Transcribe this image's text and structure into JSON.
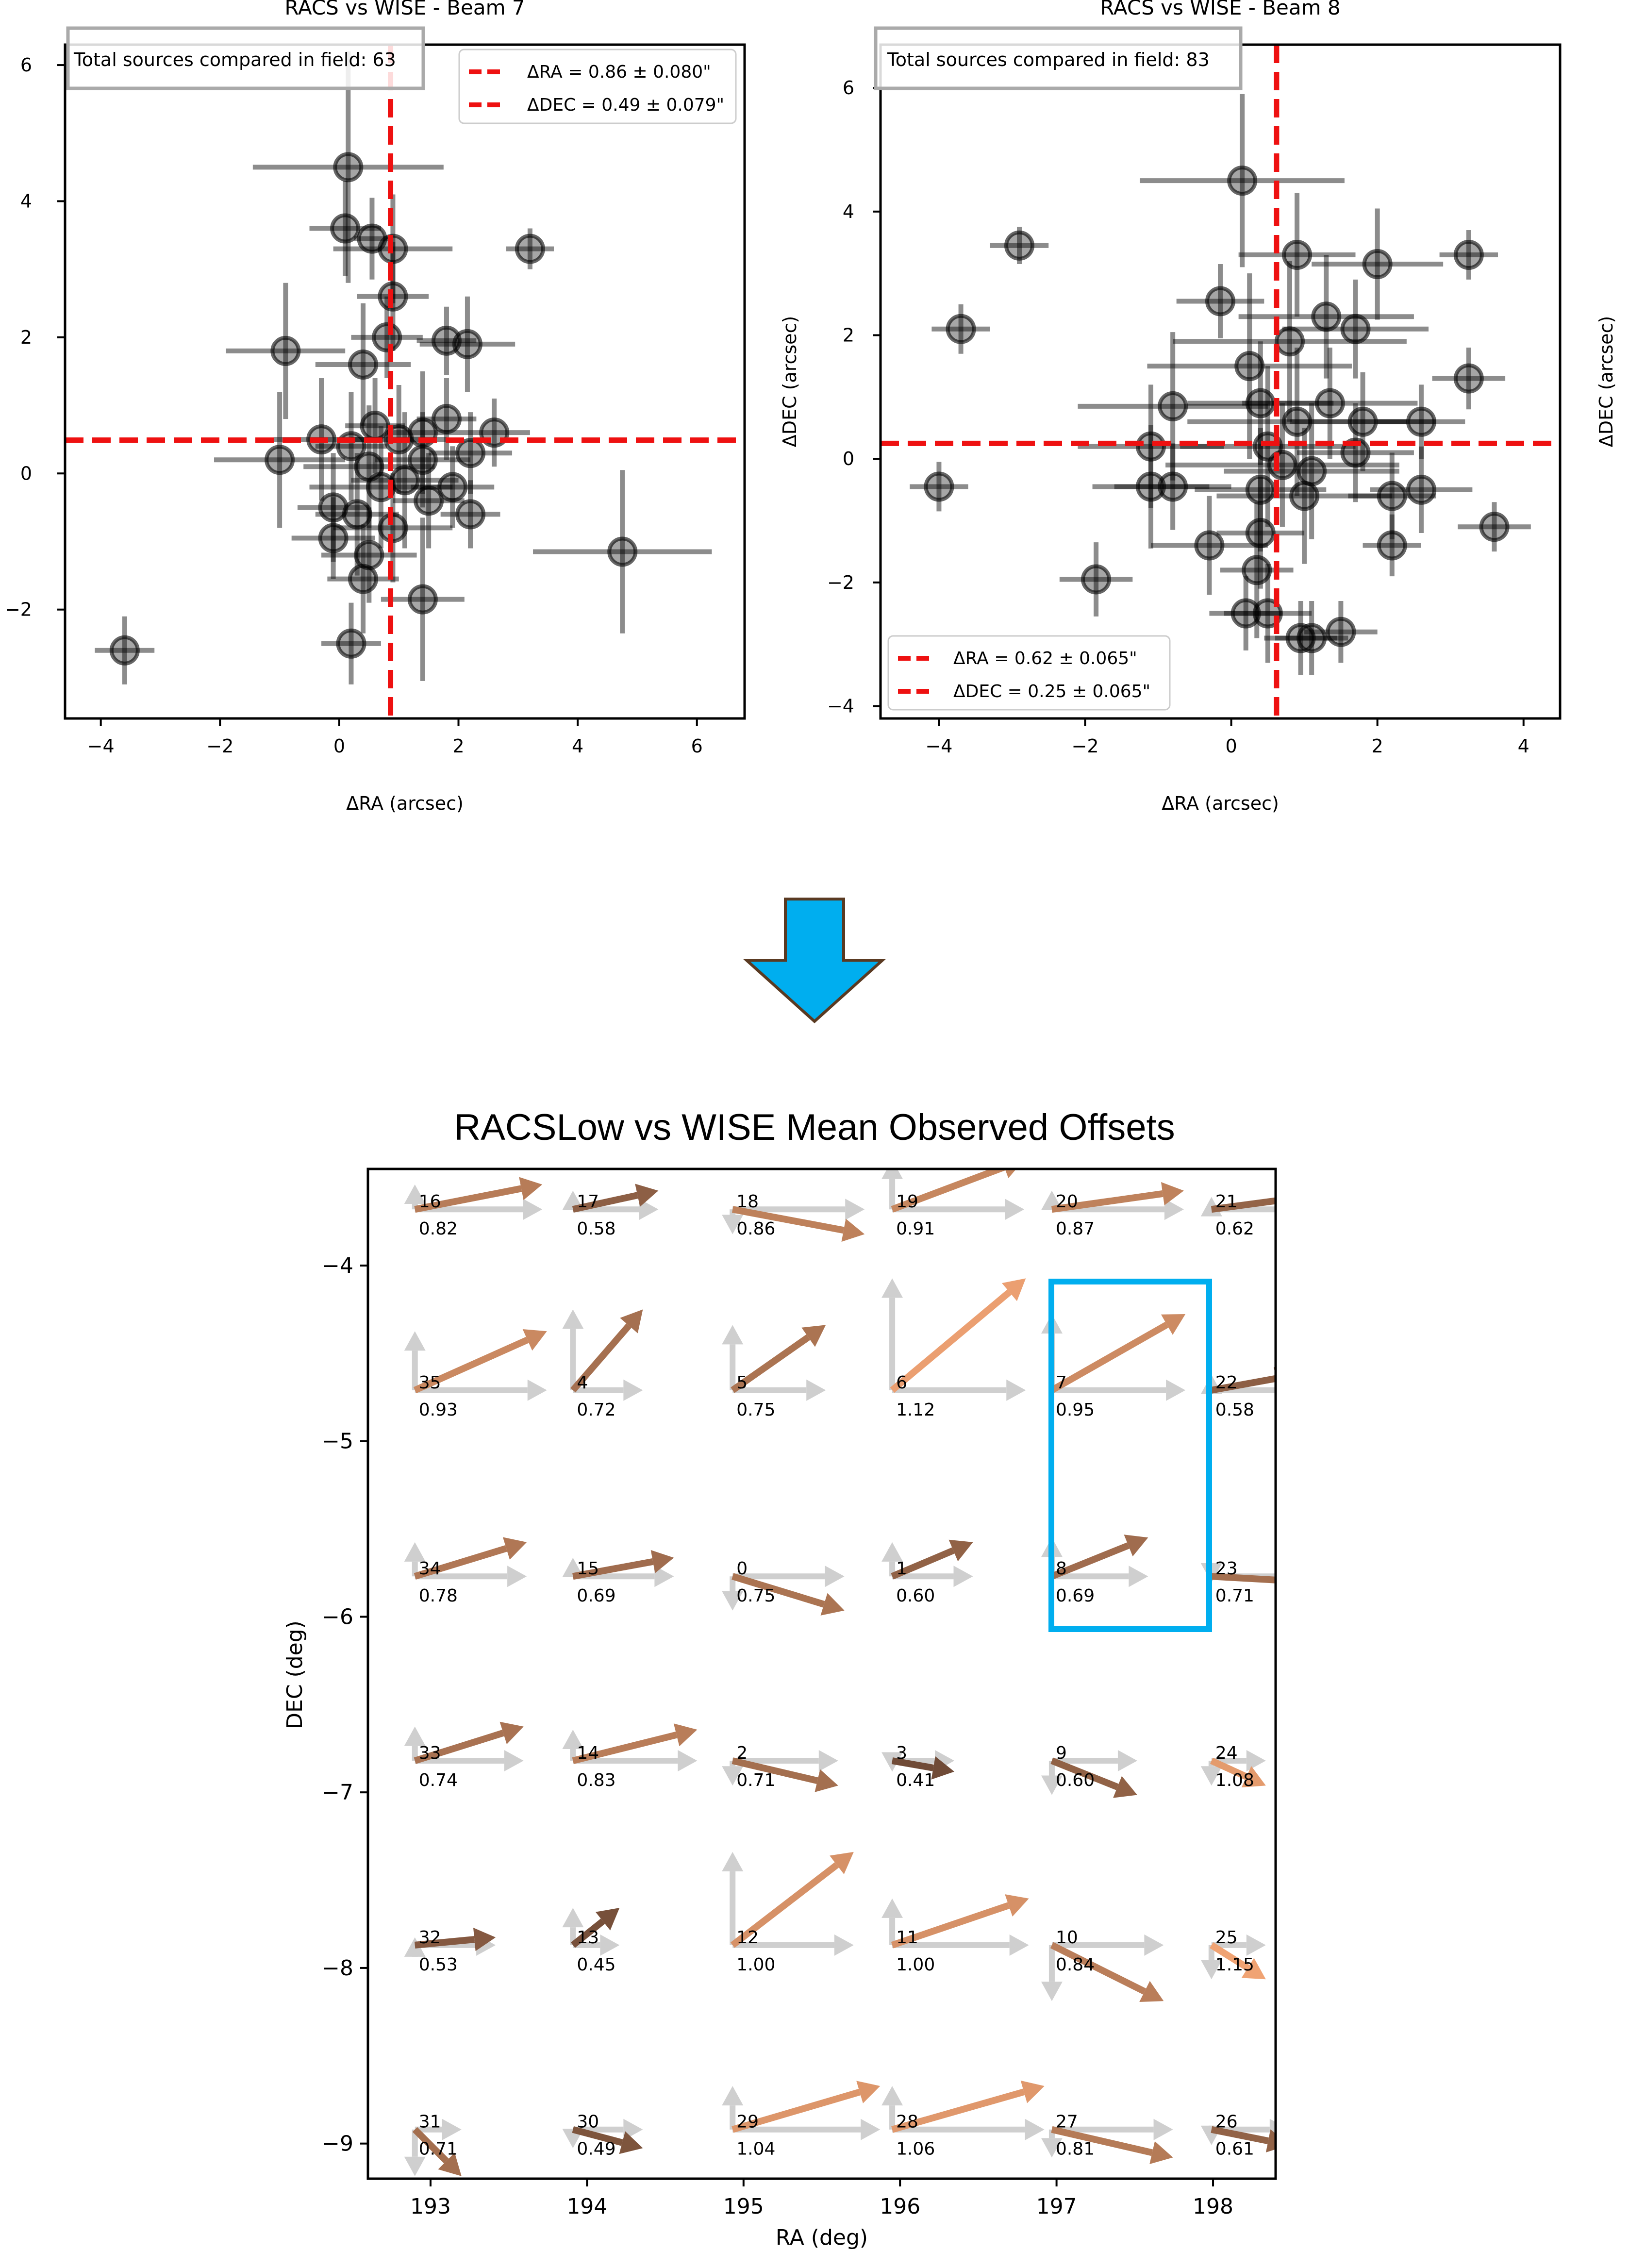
{
  "colors": {
    "point": "#000000",
    "mean_line": "#ee1111",
    "arrow_down": "#00aeef",
    "highlight": "#00aeef",
    "ref_arrow": "#cfcfcf",
    "offset_arrow_dark": "#6e4a36",
    "offset_arrow_light": "#f0a373"
  },
  "chart_data": [
    {
      "type": "scatter",
      "title": "RACS vs WISE - Beam 7",
      "xlabel": "ΔRA (arcsec)",
      "ylabel": "",
      "xlim": [
        -4.6,
        6.8
      ],
      "ylim": [
        -3.6,
        6.3
      ],
      "xticks": [
        -4,
        -2,
        0,
        2,
        4,
        6
      ],
      "yticks": [
        -2,
        0,
        2,
        4,
        6
      ],
      "info_box": "Total sources compared in field: 63",
      "legend_position": "top-right",
      "legend": [
        "ΔRA = 0.86 ± 0.080\"",
        "ΔDEC = 0.49 ± 0.079\""
      ],
      "mean_ra": 0.86,
      "mean_dec": 0.49,
      "points": [
        {
          "x": -3.6,
          "y": -2.6,
          "ex": 0.5,
          "ey": 0.5
        },
        {
          "x": 0.15,
          "y": 4.5,
          "ex": 1.6,
          "ey": 1.7
        },
        {
          "x": 0.1,
          "y": 3.6,
          "ex": 0.6,
          "ey": 0.7
        },
        {
          "x": 0.55,
          "y": 3.45,
          "ex": 0.3,
          "ey": 0.6
        },
        {
          "x": 0.9,
          "y": 3.3,
          "ex": 1.0,
          "ey": 0.8
        },
        {
          "x": 3.2,
          "y": 3.3,
          "ex": 0.4,
          "ey": 0.3
        },
        {
          "x": 0.9,
          "y": 2.6,
          "ex": 0.6,
          "ey": 0.8
        },
        {
          "x": -0.9,
          "y": 1.8,
          "ex": 1.0,
          "ey": 1.0
        },
        {
          "x": 0.4,
          "y": 1.6,
          "ex": 0.8,
          "ey": 0.9
        },
        {
          "x": 1.8,
          "y": 1.95,
          "ex": 0.5,
          "ey": 0.5
        },
        {
          "x": 2.15,
          "y": 1.9,
          "ex": 0.8,
          "ey": 0.7
        },
        {
          "x": 0.8,
          "y": 2.0,
          "ex": 0.6,
          "ey": 0.6
        },
        {
          "x": -1.0,
          "y": 0.2,
          "ex": 1.1,
          "ey": 1.0
        },
        {
          "x": -0.3,
          "y": 0.5,
          "ex": 0.8,
          "ey": 0.9
        },
        {
          "x": 0.2,
          "y": 0.4,
          "ex": 0.6,
          "ey": 0.8
        },
        {
          "x": 0.6,
          "y": 0.7,
          "ex": 0.5,
          "ey": 0.7
        },
        {
          "x": 1.0,
          "y": 0.5,
          "ex": 0.8,
          "ey": 0.8
        },
        {
          "x": 1.4,
          "y": 0.6,
          "ex": 0.6,
          "ey": 0.9
        },
        {
          "x": 1.8,
          "y": 0.8,
          "ex": 0.5,
          "ey": 0.6
        },
        {
          "x": 2.6,
          "y": 0.6,
          "ex": 0.6,
          "ey": 0.5
        },
        {
          "x": 2.2,
          "y": 0.3,
          "ex": 0.7,
          "ey": 0.6
        },
        {
          "x": 0.5,
          "y": 0.1,
          "ex": 1.1,
          "ey": 0.9
        },
        {
          "x": 1.4,
          "y": 0.2,
          "ex": 0.8,
          "ey": 0.7
        },
        {
          "x": 0.7,
          "y": -0.2,
          "ex": 1.2,
          "ey": 0.9
        },
        {
          "x": 1.1,
          "y": -0.1,
          "ex": 0.9,
          "ey": 1.0
        },
        {
          "x": 1.5,
          "y": -0.4,
          "ex": 0.6,
          "ey": 0.7
        },
        {
          "x": 1.9,
          "y": -0.2,
          "ex": 0.7,
          "ey": 0.6
        },
        {
          "x": -0.1,
          "y": -0.5,
          "ex": 0.6,
          "ey": 0.8
        },
        {
          "x": 0.3,
          "y": -0.6,
          "ex": 0.7,
          "ey": 0.9
        },
        {
          "x": 0.9,
          "y": -0.8,
          "ex": 1.0,
          "ey": 0.8
        },
        {
          "x": 2.2,
          "y": -0.6,
          "ex": 0.5,
          "ey": 0.5
        },
        {
          "x": -0.1,
          "y": -0.95,
          "ex": 0.7,
          "ey": 0.6
        },
        {
          "x": 0.5,
          "y": -1.2,
          "ex": 0.8,
          "ey": 0.7
        },
        {
          "x": 0.4,
          "y": -1.55,
          "ex": 0.6,
          "ey": 0.8
        },
        {
          "x": 1.4,
          "y": -1.85,
          "ex": 0.7,
          "ey": 1.2
        },
        {
          "x": 4.75,
          "y": -1.15,
          "ex": 1.5,
          "ey": 1.2
        },
        {
          "x": 0.2,
          "y": -2.5,
          "ex": 0.5,
          "ey": 0.6
        }
      ]
    },
    {
      "type": "scatter",
      "title": "RACS vs WISE - Beam 8",
      "xlabel": "ΔRA (arcsec)",
      "ylabel": "ΔDEC (arcsec)",
      "right_label": "ΔDEC (arcsec)",
      "xlim": [
        -4.8,
        4.5
      ],
      "ylim": [
        -4.2,
        6.7
      ],
      "xticks": [
        -4,
        -2,
        0,
        2,
        4
      ],
      "yticks": [
        -4,
        -2,
        0,
        2,
        4,
        6
      ],
      "info_box": "Total sources compared in field: 83",
      "legend_position": "bottom-left",
      "legend": [
        "ΔRA = 0.62 ± 0.065\"",
        "ΔDEC = 0.25 ± 0.065\""
      ],
      "mean_ra": 0.62,
      "mean_dec": 0.25,
      "points": [
        {
          "x": -4.0,
          "y": -0.45,
          "ex": 0.4,
          "ey": 0.4
        },
        {
          "x": -3.7,
          "y": 2.1,
          "ex": 0.4,
          "ey": 0.4
        },
        {
          "x": -2.9,
          "y": 3.45,
          "ex": 0.4,
          "ey": 0.3
        },
        {
          "x": -1.85,
          "y": -1.95,
          "ex": 0.5,
          "ey": 0.6
        },
        {
          "x": 0.15,
          "y": 4.5,
          "ex": 1.4,
          "ey": 1.4
        },
        {
          "x": -0.15,
          "y": 2.55,
          "ex": 0.6,
          "ey": 0.6
        },
        {
          "x": 0.9,
          "y": 3.3,
          "ex": 0.8,
          "ey": 1.0
        },
        {
          "x": 2.0,
          "y": 3.15,
          "ex": 0.9,
          "ey": 0.9
        },
        {
          "x": 3.25,
          "y": 3.3,
          "ex": 0.4,
          "ey": 0.4
        },
        {
          "x": 3.25,
          "y": 1.3,
          "ex": 0.5,
          "ey": 0.5
        },
        {
          "x": 3.6,
          "y": -1.1,
          "ex": 0.5,
          "ey": 0.4
        },
        {
          "x": -0.8,
          "y": 0.85,
          "ex": 1.3,
          "ey": 1.2
        },
        {
          "x": -1.1,
          "y": 0.2,
          "ex": 1.0,
          "ey": 1.0
        },
        {
          "x": -1.1,
          "y": -0.45,
          "ex": 0.8,
          "ey": 1.0
        },
        {
          "x": -0.8,
          "y": -0.45,
          "ex": 0.8,
          "ey": 0.7
        },
        {
          "x": 0.25,
          "y": 1.5,
          "ex": 1.4,
          "ey": 1.5
        },
        {
          "x": 0.8,
          "y": 1.9,
          "ex": 1.6,
          "ey": 1.3
        },
        {
          "x": 1.3,
          "y": 2.3,
          "ex": 1.2,
          "ey": 1.0
        },
        {
          "x": 1.7,
          "y": 2.1,
          "ex": 1.0,
          "ey": 0.8
        },
        {
          "x": 0.4,
          "y": 0.9,
          "ex": 1.0,
          "ey": 1.0
        },
        {
          "x": 0.9,
          "y": 0.6,
          "ex": 1.5,
          "ey": 1.2
        },
        {
          "x": 1.35,
          "y": 0.9,
          "ex": 1.2,
          "ey": 0.9
        },
        {
          "x": 1.8,
          "y": 0.6,
          "ex": 1.0,
          "ey": 0.8
        },
        {
          "x": 2.6,
          "y": 0.6,
          "ex": 0.6,
          "ey": 0.6
        },
        {
          "x": 0.5,
          "y": 0.2,
          "ex": 1.2,
          "ey": 1.3
        },
        {
          "x": 0.7,
          "y": -0.1,
          "ex": 1.6,
          "ey": 1.0
        },
        {
          "x": 1.1,
          "y": -0.2,
          "ex": 1.2,
          "ey": 1.1
        },
        {
          "x": 1.7,
          "y": 0.1,
          "ex": 0.8,
          "ey": 0.8
        },
        {
          "x": 2.2,
          "y": -0.6,
          "ex": 0.6,
          "ey": 0.7
        },
        {
          "x": 2.6,
          "y": -0.5,
          "ex": 0.7,
          "ey": 0.7
        },
        {
          "x": 0.4,
          "y": -0.5,
          "ex": 0.9,
          "ey": 1.0
        },
        {
          "x": 1.0,
          "y": -0.6,
          "ex": 1.2,
          "ey": 1.1
        },
        {
          "x": -0.3,
          "y": -1.4,
          "ex": 0.8,
          "ey": 0.8
        },
        {
          "x": 0.4,
          "y": -1.2,
          "ex": 0.6,
          "ey": 0.9
        },
        {
          "x": 2.2,
          "y": -1.4,
          "ex": 0.4,
          "ey": 0.5
        },
        {
          "x": 0.2,
          "y": -2.5,
          "ex": 0.5,
          "ey": 0.6
        },
        {
          "x": 0.5,
          "y": -2.5,
          "ex": 0.6,
          "ey": 0.8
        },
        {
          "x": 0.95,
          "y": -2.9,
          "ex": 0.5,
          "ey": 0.6
        },
        {
          "x": 1.1,
          "y": -2.9,
          "ex": 0.5,
          "ey": 0.6
        },
        {
          "x": 1.5,
          "y": -2.8,
          "ex": 0.5,
          "ey": 0.5
        },
        {
          "x": 0.35,
          "y": -1.8,
          "ex": 0.5,
          "ey": 1.1
        }
      ]
    },
    {
      "type": "quiver",
      "title": "RACSLow vs WISE Mean Observed Offsets",
      "xlabel": "RA (deg)",
      "ylabel": "DEC (deg)",
      "xlim": [
        192.6,
        198.4
      ],
      "ylim": [
        -9.2,
        -3.45
      ],
      "xticks": [
        193,
        194,
        195,
        196,
        197,
        198
      ],
      "yticks": [
        -4,
        -5,
        -6,
        -7,
        -8,
        -9
      ],
      "highlight_beams": [
        "7",
        "8"
      ],
      "beams": [
        {
          "id": "16",
          "value": "0.82",
          "ra": 192.9,
          "dec": -3.68,
          "dra": 0.82,
          "ddec": 0.16
        },
        {
          "id": "17",
          "value": "0.58",
          "ra": 193.91,
          "dec": -3.68,
          "dra": 0.55,
          "ddec": 0.12
        },
        {
          "id": "18",
          "value": "0.86",
          "ra": 194.93,
          "dec": -3.68,
          "dra": 0.85,
          "ddec": -0.16
        },
        {
          "id": "19",
          "value": "0.91",
          "ra": 195.95,
          "dec": -3.68,
          "dra": 0.85,
          "ddec": 0.32
        },
        {
          "id": "20",
          "value": "0.87",
          "ra": 196.97,
          "dec": -3.68,
          "dra": 0.85,
          "ddec": 0.12
        },
        {
          "id": "21",
          "value": "0.62",
          "ra": 197.99,
          "dec": -3.68,
          "dra": 0.6,
          "ddec": 0.08
        },
        {
          "id": "35",
          "value": "0.93",
          "ra": 192.9,
          "dec": -4.71,
          "dra": 0.85,
          "ddec": 0.38
        },
        {
          "id": "4",
          "value": "0.72",
          "ra": 193.91,
          "dec": -4.71,
          "dra": 0.45,
          "ddec": 0.52
        },
        {
          "id": "5",
          "value": "0.75",
          "ra": 194.93,
          "dec": -4.71,
          "dra": 0.6,
          "ddec": 0.42
        },
        {
          "id": "6",
          "value": "1.12",
          "ra": 195.95,
          "dec": -4.71,
          "dra": 0.86,
          "ddec": 0.72
        },
        {
          "id": "7",
          "value": "0.95",
          "ra": 196.97,
          "dec": -4.71,
          "dra": 0.86,
          "ddec": 0.49
        },
        {
          "id": "22",
          "value": "0.58",
          "ra": 197.99,
          "dec": -4.71,
          "dra": 0.55,
          "ddec": 0.1
        },
        {
          "id": "34",
          "value": "0.78",
          "ra": 192.9,
          "dec": -5.77,
          "dra": 0.72,
          "ddec": 0.22
        },
        {
          "id": "15",
          "value": "0.69",
          "ra": 193.91,
          "dec": -5.77,
          "dra": 0.65,
          "ddec": 0.12
        },
        {
          "id": "0",
          "value": "0.75",
          "ra": 194.93,
          "dec": -5.77,
          "dra": 0.72,
          "ddec": -0.22
        },
        {
          "id": "1",
          "value": "0.60",
          "ra": 195.95,
          "dec": -5.77,
          "dra": 0.52,
          "ddec": 0.22
        },
        {
          "id": "8",
          "value": "0.69",
          "ra": 196.97,
          "dec": -5.77,
          "dra": 0.62,
          "ddec": 0.25
        },
        {
          "id": "23",
          "value": "0.71",
          "ra": 197.99,
          "dec": -5.77,
          "dra": 0.7,
          "ddec": -0.04
        },
        {
          "id": "33",
          "value": "0.74",
          "ra": 192.9,
          "dec": -6.82,
          "dra": 0.7,
          "ddec": 0.22
        },
        {
          "id": "14",
          "value": "0.83",
          "ra": 193.91,
          "dec": -6.82,
          "dra": 0.8,
          "ddec": 0.2
        },
        {
          "id": "2",
          "value": "0.71",
          "ra": 194.93,
          "dec": -6.82,
          "dra": 0.68,
          "ddec": -0.16
        },
        {
          "id": "3",
          "value": "0.41",
          "ra": 195.95,
          "dec": -6.82,
          "dra": 0.4,
          "ddec": -0.07
        },
        {
          "id": "9",
          "value": "0.60",
          "ra": 196.97,
          "dec": -6.82,
          "dra": 0.55,
          "ddec": -0.22
        },
        {
          "id": "24",
          "value": "1.08",
          "ra": 197.99,
          "dec": -6.82,
          "dra": 0.35,
          "ddec": -0.16
        },
        {
          "id": "32",
          "value": "0.53",
          "ra": 192.9,
          "dec": -7.87,
          "dra": 0.52,
          "ddec": 0.05
        },
        {
          "id": "13",
          "value": "0.45",
          "ra": 193.91,
          "dec": -7.87,
          "dra": 0.3,
          "ddec": 0.24
        },
        {
          "id": "12",
          "value": "1.00",
          "ra": 194.93,
          "dec": -7.87,
          "dra": 0.78,
          "ddec": 0.6
        },
        {
          "id": "11",
          "value": "1.00",
          "ra": 195.95,
          "dec": -7.87,
          "dra": 0.88,
          "ddec": 0.3
        },
        {
          "id": "10",
          "value": "0.84",
          "ra": 196.97,
          "dec": -7.87,
          "dra": 0.72,
          "ddec": -0.36
        },
        {
          "id": "25",
          "value": "1.15",
          "ra": 197.99,
          "dec": -7.87,
          "dra": 0.35,
          "ddec": -0.22
        },
        {
          "id": "31",
          "value": "0.71",
          "ra": 192.9,
          "dec": -8.92,
          "dra": 0.3,
          "ddec": -0.3
        },
        {
          "id": "30",
          "value": "0.49",
          "ra": 193.91,
          "dec": -8.92,
          "dra": 0.45,
          "ddec": -0.12
        },
        {
          "id": "29",
          "value": "1.04",
          "ra": 194.93,
          "dec": -8.92,
          "dra": 0.95,
          "ddec": 0.28
        },
        {
          "id": "28",
          "value": "1.06",
          "ra": 195.95,
          "dec": -8.92,
          "dra": 0.98,
          "ddec": 0.28
        },
        {
          "id": "27",
          "value": "0.81",
          "ra": 196.97,
          "dec": -8.92,
          "dra": 0.78,
          "ddec": -0.18
        },
        {
          "id": "26",
          "value": "0.61",
          "ra": 197.99,
          "dec": -8.92,
          "dra": 0.5,
          "ddec": -0.1
        }
      ]
    }
  ]
}
